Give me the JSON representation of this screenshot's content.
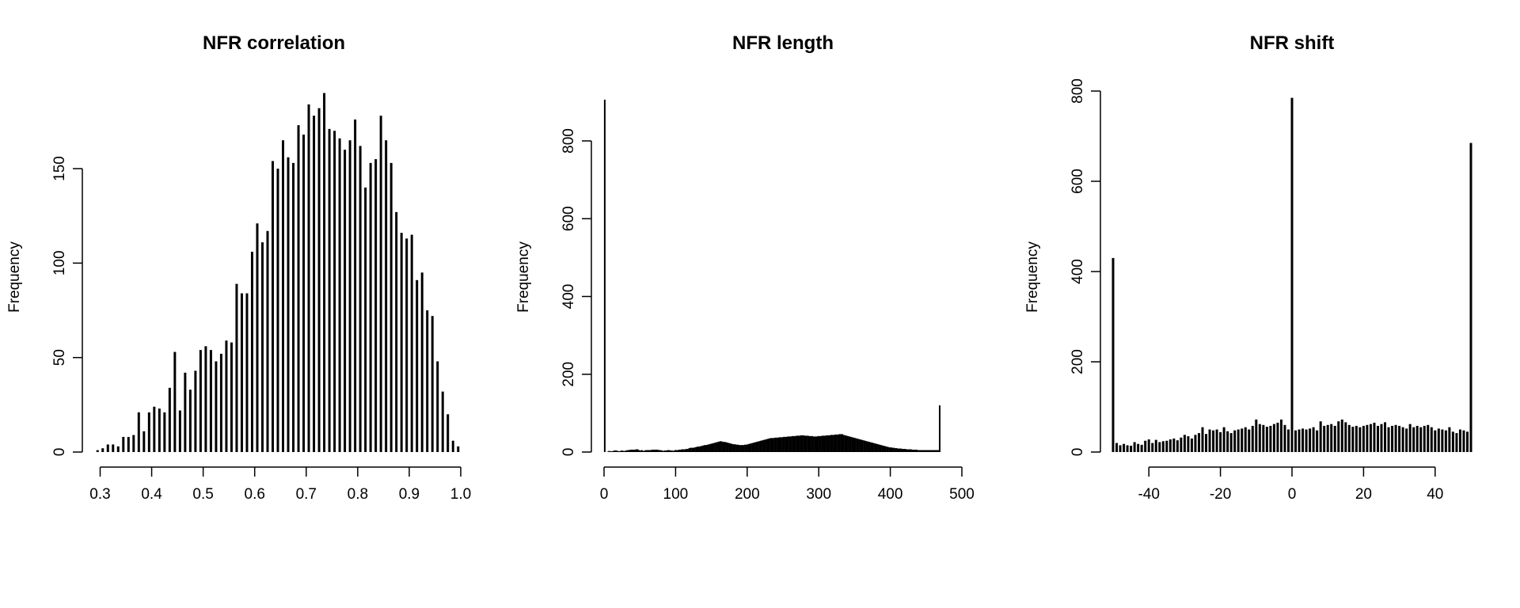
{
  "chart_data": [
    {
      "type": "bar",
      "title": "NFR correlation",
      "xlabel": "",
      "ylabel": "Frequency",
      "xlim": [
        0.29,
        1.0
      ],
      "ylim": [
        0,
        150
      ],
      "xticks": [
        0.3,
        0.4,
        0.5,
        0.6,
        0.7,
        0.8,
        0.9,
        1.0
      ],
      "xtick_labels": [
        "0.3",
        "0.4",
        "0.5",
        "0.6",
        "0.7",
        "0.8",
        "0.9",
        "1.0"
      ],
      "yticks": [
        0,
        50,
        100,
        150
      ],
      "ytick_labels": [
        "0",
        "50",
        "100",
        "150"
      ],
      "bin_start": 0.29,
      "bin_width": 0.01,
      "values": [
        1,
        2,
        4,
        4,
        3,
        8,
        8,
        9,
        21,
        11,
        21,
        24,
        23,
        21,
        34,
        53,
        22,
        42,
        33,
        43,
        54,
        56,
        54,
        48,
        52,
        59,
        58,
        89,
        84,
        84,
        106,
        121,
        111,
        117,
        154,
        150,
        165,
        156,
        153,
        173,
        168,
        184,
        178,
        182,
        190,
        171,
        170,
        166,
        160,
        165,
        176,
        162,
        140,
        153,
        155,
        178,
        165,
        153,
        127,
        116,
        113,
        115,
        91,
        95,
        75,
        72,
        48,
        32,
        20,
        6,
        3
      ]
    },
    {
      "type": "bar",
      "title": "NFR length",
      "xlabel": "",
      "ylabel": "Frequency",
      "xlim": [
        0,
        500
      ],
      "ylim": [
        0,
        800
      ],
      "xticks": [
        0,
        100,
        200,
        300,
        400,
        500
      ],
      "xtick_labels": [
        "0",
        "100",
        "200",
        "300",
        "400",
        "500"
      ],
      "yticks": [
        0,
        200,
        400,
        600,
        800
      ],
      "ytick_labels": [
        "0",
        "200",
        "400",
        "600",
        "800"
      ],
      "bin_start": 0,
      "bin_width": 2,
      "values": [
        906,
        0,
        1,
        3,
        2,
        2,
        3,
        4,
        4,
        3,
        2,
        3,
        4,
        3,
        3,
        4,
        5,
        5,
        6,
        6,
        6,
        6,
        7,
        7,
        5,
        4,
        5,
        3,
        4,
        5,
        5,
        5,
        5,
        6,
        6,
        6,
        6,
        6,
        5,
        5,
        4,
        3,
        4,
        4,
        5,
        5,
        4,
        4,
        3,
        5,
        5,
        5,
        6,
        6,
        7,
        7,
        7,
        8,
        8,
        10,
        11,
        11,
        11,
        12,
        13,
        14,
        14,
        15,
        16,
        17,
        18,
        18,
        19,
        20,
        21,
        22,
        23,
        24,
        25,
        26,
        27,
        28,
        27,
        26,
        26,
        25,
        24,
        23,
        22,
        21,
        20,
        20,
        19,
        19,
        18,
        18,
        18,
        18,
        19,
        19,
        20,
        21,
        22,
        23,
        24,
        25,
        26,
        27,
        28,
        29,
        30,
        31,
        32,
        33,
        34,
        35,
        36,
        36,
        36,
        37,
        37,
        37,
        38,
        38,
        38,
        39,
        39,
        39,
        40,
        40,
        40,
        41,
        41,
        41,
        42,
        42,
        42,
        43,
        43,
        43,
        42,
        42,
        42,
        41,
        41,
        41,
        40,
        40,
        40,
        41,
        41,
        41,
        42,
        42,
        42,
        43,
        43,
        43,
        44,
        44,
        44,
        45,
        45,
        45,
        46,
        46,
        46,
        44,
        43,
        42,
        41,
        40,
        39,
        38,
        37,
        36,
        35,
        34,
        33,
        32,
        31,
        30,
        29,
        28,
        27,
        26,
        25,
        24,
        23,
        22,
        21,
        20,
        19,
        18,
        17,
        16,
        15,
        14,
        13,
        12,
        12,
        11,
        11,
        10,
        10,
        9,
        9,
        9,
        8,
        8,
        8,
        7,
        7,
        7,
        7,
        6,
        6,
        6,
        6,
        5,
        5,
        5,
        5,
        5,
        5,
        5,
        5,
        5,
        5,
        5,
        5,
        5,
        5,
        5,
        120
      ]
    },
    {
      "type": "bar",
      "title": "NFR shift",
      "xlabel": "",
      "ylabel": "Frequency",
      "xlim": [
        -50,
        50
      ],
      "ylim": [
        0,
        800
      ],
      "xticks": [
        -40,
        -20,
        0,
        20,
        40
      ],
      "xtick_labels": [
        "-40",
        "-20",
        "0",
        "20",
        "40"
      ],
      "yticks": [
        0,
        200,
        400,
        600,
        800
      ],
      "ytick_labels": [
        "0",
        "200",
        "400",
        "600",
        "800"
      ],
      "x": [
        -50,
        -49,
        -48,
        -47,
        -46,
        -45,
        -44,
        -43,
        -42,
        -41,
        -40,
        -39,
        -38,
        -37,
        -36,
        -35,
        -34,
        -33,
        -32,
        -31,
        -30,
        -29,
        -28,
        -27,
        -26,
        -25,
        -24,
        -23,
        -22,
        -21,
        -20,
        -19,
        -18,
        -17,
        -16,
        -15,
        -14,
        -13,
        -12,
        -11,
        -10,
        -9,
        -8,
        -7,
        -6,
        -5,
        -4,
        -3,
        -2,
        -1,
        0,
        1,
        2,
        3,
        4,
        5,
        6,
        7,
        8,
        9,
        10,
        11,
        12,
        13,
        14,
        15,
        16,
        17,
        18,
        19,
        20,
        21,
        22,
        23,
        24,
        25,
        26,
        27,
        28,
        29,
        30,
        31,
        32,
        33,
        34,
        35,
        36,
        37,
        38,
        39,
        40,
        41,
        42,
        43,
        44,
        45,
        46,
        47,
        48,
        49,
        50
      ],
      "values": [
        430,
        20,
        15,
        18,
        15,
        14,
        22,
        18,
        16,
        25,
        28,
        20,
        27,
        22,
        24,
        25,
        28,
        30,
        26,
        32,
        38,
        35,
        30,
        38,
        42,
        55,
        40,
        50,
        48,
        50,
        44,
        55,
        46,
        42,
        48,
        50,
        52,
        55,
        50,
        58,
        72,
        62,
        60,
        56,
        58,
        62,
        65,
        72,
        60,
        50,
        785,
        48,
        50,
        52,
        50,
        52,
        55,
        48,
        68,
        58,
        60,
        62,
        58,
        68,
        72,
        66,
        60,
        56,
        58,
        55,
        58,
        60,
        62,
        65,
        58,
        62,
        66,
        55,
        58,
        60,
        58,
        55,
        52,
        62,
        55,
        58,
        55,
        58,
        60,
        55,
        48,
        52,
        50,
        48,
        55,
        45,
        42,
        50,
        48,
        45,
        685
      ]
    }
  ]
}
